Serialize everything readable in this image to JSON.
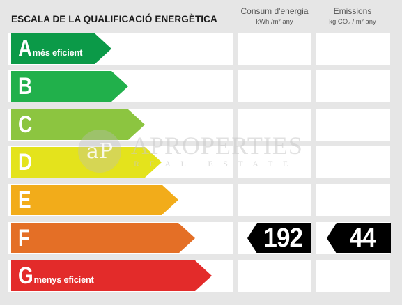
{
  "title": "ESCALA DE LA QUALIFICACIÓ ENERGÈTICA",
  "columns": {
    "energy": {
      "heading": "Consum d'energia",
      "unit": "kWh /m² any"
    },
    "emissions": {
      "heading": "Emissions",
      "unit": "kg CO₂ / m² any"
    }
  },
  "ratings": [
    {
      "letter": "A",
      "desc": "més eficient",
      "color": "#0b9a48"
    },
    {
      "letter": "B",
      "desc": "",
      "color": "#21b04b"
    },
    {
      "letter": "C",
      "desc": "",
      "color": "#8cc540"
    },
    {
      "letter": "D",
      "desc": "",
      "color": "#e4e31c"
    },
    {
      "letter": "E",
      "desc": "",
      "color": "#f2ac1a"
    },
    {
      "letter": "F",
      "desc": "",
      "color": "#e46f26"
    },
    {
      "letter": "G",
      "desc": "menys eficient",
      "color": "#e32b2a"
    }
  ],
  "result": {
    "rating": "F",
    "energy_value": "192",
    "emissions_value": "44"
  },
  "watermark": {
    "logo_text": "aP",
    "brand": "APROPERTIES",
    "sub": "REAL ESTATE"
  }
}
